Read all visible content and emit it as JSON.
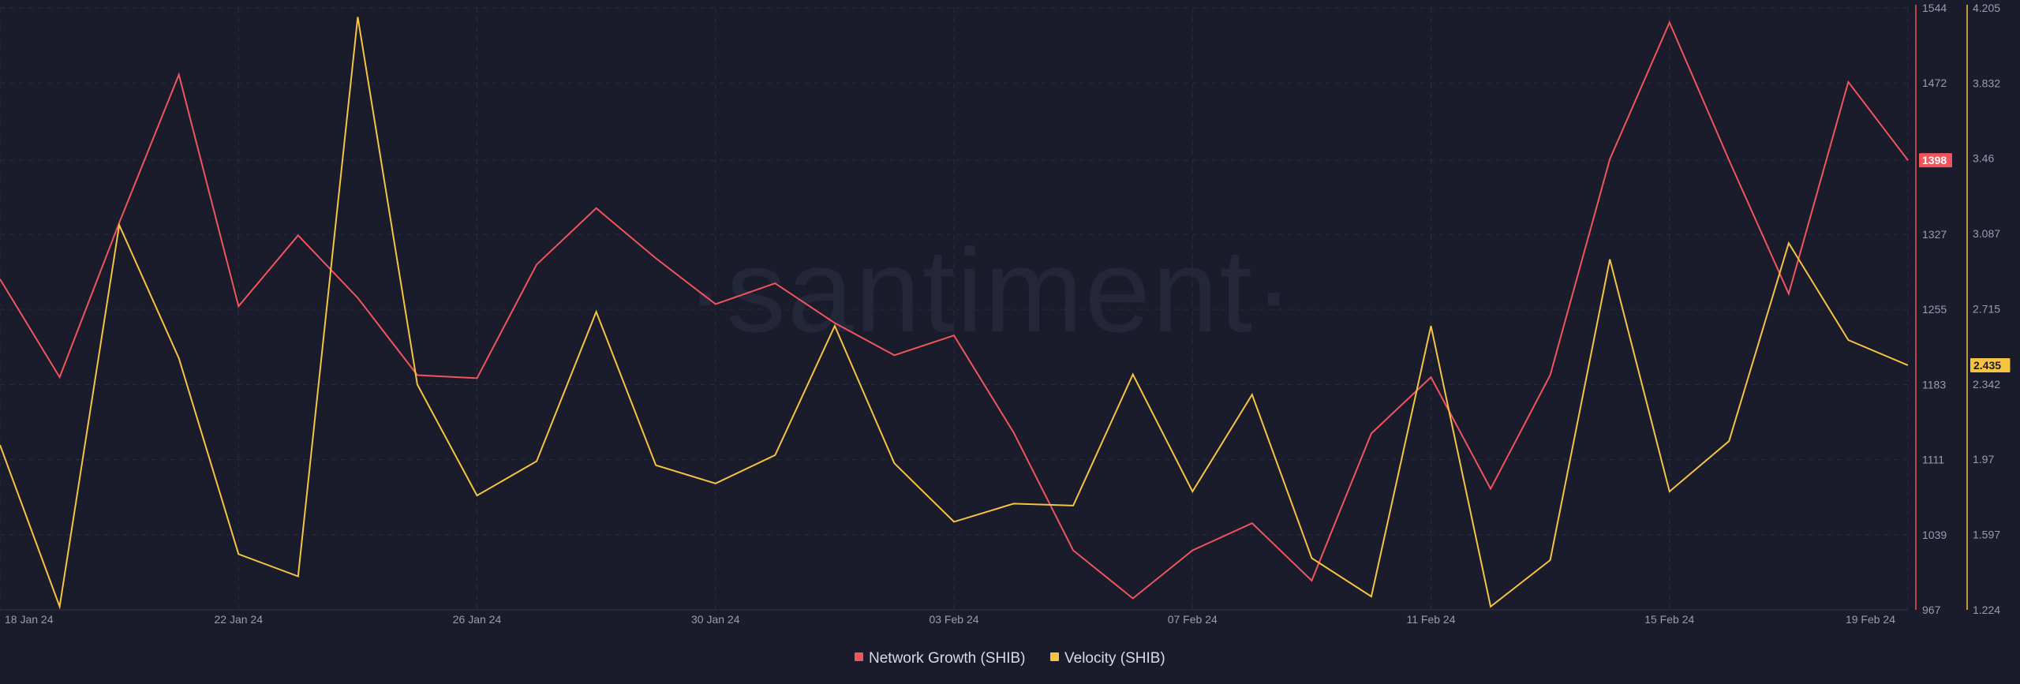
{
  "watermark": "·santiment·",
  "colors": {
    "background": "#1a1b2b",
    "network_growth": "#f0555e",
    "velocity": "#f5c542",
    "grid": "#2b2d40"
  },
  "chart_data": {
    "type": "line",
    "title": "",
    "legend_position": "bottom-center",
    "grid": true,
    "x": [
      "18 Jan 24",
      "19 Jan 24",
      "20 Jan 24",
      "21 Jan 24",
      "22 Jan 24",
      "23 Jan 24",
      "24 Jan 24",
      "25 Jan 24",
      "26 Jan 24",
      "27 Jan 24",
      "28 Jan 24",
      "29 Jan 24",
      "30 Jan 24",
      "31 Jan 24",
      "01 Feb 24",
      "02 Feb 24",
      "03 Feb 24",
      "04 Feb 24",
      "05 Feb 24",
      "06 Feb 24",
      "07 Feb 24",
      "08 Feb 24",
      "09 Feb 24",
      "10 Feb 24",
      "11 Feb 24",
      "12 Feb 24",
      "13 Feb 24",
      "14 Feb 24",
      "15 Feb 24",
      "16 Feb 24",
      "17 Feb 24",
      "18 Feb 24",
      "19 Feb 24"
    ],
    "x_tick_labels": [
      "18 Jan 24",
      "22 Jan 24",
      "26 Jan 24",
      "30 Jan 24",
      "03 Feb 24",
      "07 Feb 24",
      "11 Feb 24",
      "15 Feb 24",
      "19 Feb 24"
    ],
    "series": [
      {
        "name": "Network Growth (SHIB)",
        "axis": "left",
        "color": "#f0555e",
        "values": [
          1284,
          1190,
          1338,
          1480,
          1258,
          1326,
          1266,
          1192,
          1189,
          1298,
          1352,
          1304,
          1260,
          1280,
          1242,
          1211,
          1230,
          1137,
          1024,
          978,
          1024,
          1050,
          995,
          1136,
          1190,
          1083,
          1192,
          1399,
          1530,
          1398,
          1270,
          1473,
          1398
        ]
      },
      {
        "name": "Velocity (SHIB)",
        "axis": "right",
        "color": "#f5c542",
        "values": [
          2.04,
          1.24,
          3.13,
          2.47,
          1.5,
          1.39,
          4.16,
          2.34,
          1.79,
          1.96,
          2.7,
          1.94,
          1.85,
          1.99,
          2.63,
          1.95,
          1.66,
          1.75,
          1.74,
          2.39,
          1.81,
          2.29,
          1.48,
          1.29,
          2.63,
          1.24,
          1.47,
          2.96,
          1.81,
          2.06,
          3.04,
          2.56,
          2.435
        ]
      }
    ],
    "y_left": {
      "ticks": [
        "1544",
        "1472",
        "1398",
        "1327",
        "1255",
        "1183",
        "1111",
        "1039",
        "967"
      ],
      "ylim": [
        967,
        1544
      ],
      "current_value": "1398"
    },
    "y_right": {
      "ticks": [
        "4.205",
        "3.832",
        "3.46",
        "3.087",
        "2.715",
        "2.342",
        "1.97",
        "1.597",
        "1.224"
      ],
      "ylim": [
        1.224,
        4.205
      ],
      "current_value": "2.435"
    }
  }
}
